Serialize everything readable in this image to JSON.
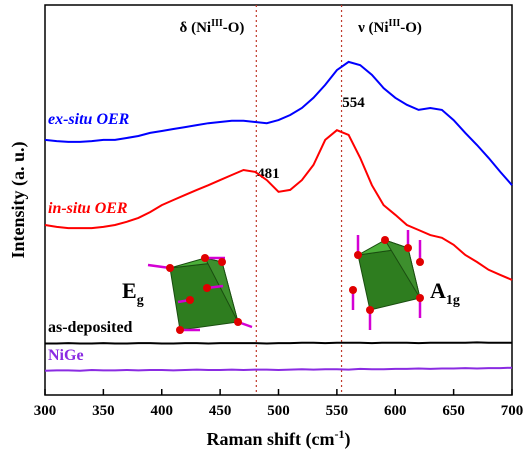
{
  "chart_data": {
    "type": "line",
    "x_label": {
      "text": "Raman shift (cm",
      "sup": "-1",
      "tail": ")"
    },
    "y_label": "Intensity (a. u.)",
    "xlim": [
      300,
      700
    ],
    "xticks": [
      300,
      350,
      400,
      450,
      500,
      550,
      600,
      650,
      700
    ],
    "ylim": [
      0,
      100
    ],
    "x": [
      300,
      310,
      320,
      330,
      340,
      350,
      360,
      370,
      380,
      390,
      400,
      410,
      420,
      430,
      440,
      450,
      460,
      470,
      480,
      490,
      500,
      510,
      520,
      530,
      540,
      550,
      560,
      570,
      580,
      590,
      600,
      610,
      620,
      630,
      640,
      650,
      660,
      670,
      680,
      690,
      700
    ],
    "series": [
      {
        "name": "ex-situ OER",
        "color": "#0000ff",
        "values": [
          65.4,
          65.1,
          64.9,
          64.9,
          65.1,
          65.4,
          65.4,
          65.9,
          66.4,
          67.2,
          67.7,
          68.2,
          68.7,
          69.2,
          69.7,
          70,
          70.3,
          70.3,
          70,
          69.7,
          70.5,
          71.8,
          73.6,
          76.2,
          79.5,
          83.3,
          85.4,
          84.6,
          82.1,
          78.7,
          76.2,
          74.4,
          73.1,
          73.6,
          73.1,
          70.5,
          67.2,
          64.1,
          60.8,
          57.2,
          53.8
        ]
      },
      {
        "name": "in-situ OER",
        "color": "#ff0000",
        "values": [
          43.6,
          43.1,
          42.8,
          42.8,
          42.8,
          43.1,
          43.6,
          44.4,
          45.4,
          46.9,
          48.7,
          50,
          51.3,
          52.6,
          53.8,
          55.1,
          56.4,
          57.7,
          57.2,
          55.1,
          52.1,
          52.6,
          55.1,
          59,
          65.4,
          67.9,
          66.7,
          60.8,
          53.8,
          48.7,
          46.2,
          43.6,
          42.3,
          41,
          40.3,
          38.5,
          35.9,
          34.1,
          32.1,
          30.8,
          29.5
        ]
      },
      {
        "name": "as-deposited",
        "color": "#000000",
        "values": [
          13.2,
          13.2,
          13.3,
          13.2,
          13.2,
          13.3,
          13.2,
          13.2,
          13.3,
          13.3,
          13.2,
          13.2,
          13.3,
          13.3,
          13.2,
          13.3,
          13.3,
          13.3,
          13.3,
          13.2,
          13.3,
          13.3,
          13.4,
          13.4,
          13.3,
          13.4,
          13.4,
          13.4,
          13.3,
          13.4,
          13.4,
          13.4,
          13.3,
          13.4,
          13.4,
          13.4,
          13.4,
          13.5,
          13.4,
          13.4,
          13.4
        ]
      },
      {
        "name": "NiGe",
        "color": "#8a2be2",
        "values": [
          6.2,
          6.3,
          6.3,
          6.2,
          6.4,
          6.3,
          6.3,
          6.4,
          6.3,
          6.4,
          6.4,
          6.3,
          6.4,
          6.5,
          6.4,
          6.4,
          6.5,
          6.4,
          6.5,
          6.5,
          6.4,
          6.5,
          6.6,
          6.5,
          6.6,
          6.6,
          6.5,
          6.7,
          6.6,
          6.6,
          6.7,
          6.7,
          6.8,
          6.7,
          6.8,
          6.8,
          6.9,
          6.8,
          6.9,
          6.9,
          7.0
        ]
      }
    ],
    "peaks": [
      481,
      554
    ],
    "band_labels": [
      {
        "text": "δ (Ni",
        "sup": "III",
        "tail": "-O)"
      },
      {
        "text": "ν (Ni",
        "sup": "III",
        "tail": "-O)"
      }
    ],
    "modes": [
      {
        "text": "E",
        "sub": "g"
      },
      {
        "text": "A",
        "sub": "1g"
      }
    ]
  }
}
